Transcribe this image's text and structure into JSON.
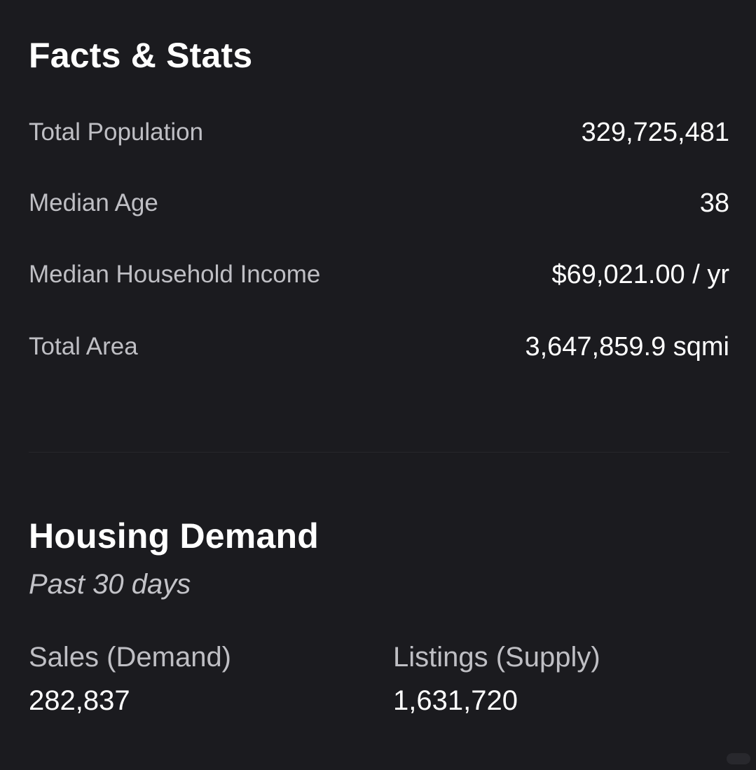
{
  "facts": {
    "title": "Facts & Stats",
    "rows": [
      {
        "label": "Total Population",
        "value": "329,725,481"
      },
      {
        "label": "Median Age",
        "value": "38"
      },
      {
        "label": "Median Household Income",
        "value": "$69,021.00 / yr"
      },
      {
        "label": "Total Area",
        "value": "3,647,859.9 sqmi"
      }
    ]
  },
  "housing": {
    "title": "Housing Demand",
    "subtitle": "Past 30 days",
    "sales": {
      "label": "Sales (Demand)",
      "value": "282,837"
    },
    "listings": {
      "label": "Listings (Supply)",
      "value": "1,631,720"
    }
  },
  "colors": {
    "background": "#1b1b1f",
    "text_primary": "#ffffff",
    "text_secondary": "#bfbfc4"
  }
}
